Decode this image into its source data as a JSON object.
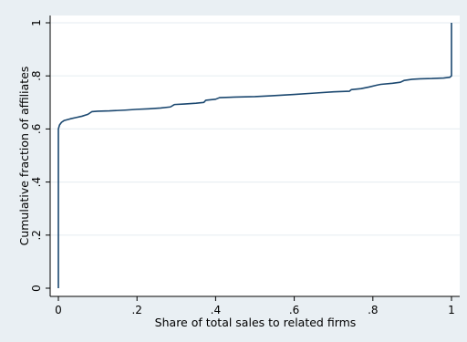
{
  "chart_data": {
    "type": "line",
    "title": "",
    "xlabel": "Share of total sales to related firms",
    "ylabel": "Cumulative fraction of affiliates",
    "xlim": [
      0,
      1
    ],
    "ylim": [
      0,
      1
    ],
    "xticks": [
      0,
      0.2,
      0.4,
      0.6,
      0.8,
      1
    ],
    "xtick_labels": [
      "0",
      ".2",
      ".4",
      ".6",
      ".8",
      "1"
    ],
    "yticks": [
      0,
      0.2,
      0.4,
      0.6,
      0.8,
      1
    ],
    "ytick_labels": [
      "0",
      ".2",
      ".4",
      ".6",
      ".8",
      "1"
    ],
    "grid": "horizontal",
    "colors": {
      "outer_background": "#e9eff3",
      "plot_background": "#ffffff",
      "gridline": "#e9eff3",
      "line": "#1a476f",
      "axis": "#000000"
    },
    "series": [
      {
        "points": [
          [
            0,
            0.0
          ],
          [
            0,
            0.6
          ],
          [
            0.003,
            0.615
          ],
          [
            0.008,
            0.625
          ],
          [
            0.015,
            0.632
          ],
          [
            0.03,
            0.638
          ],
          [
            0.045,
            0.643
          ],
          [
            0.06,
            0.648
          ],
          [
            0.075,
            0.655
          ],
          [
            0.085,
            0.665
          ],
          [
            0.1,
            0.667
          ],
          [
            0.13,
            0.668
          ],
          [
            0.17,
            0.671
          ],
          [
            0.2,
            0.674
          ],
          [
            0.23,
            0.676
          ],
          [
            0.26,
            0.679
          ],
          [
            0.285,
            0.683
          ],
          [
            0.295,
            0.692
          ],
          [
            0.32,
            0.694
          ],
          [
            0.35,
            0.697
          ],
          [
            0.37,
            0.7
          ],
          [
            0.375,
            0.708
          ],
          [
            0.4,
            0.712
          ],
          [
            0.41,
            0.718
          ],
          [
            0.45,
            0.72
          ],
          [
            0.5,
            0.722
          ],
          [
            0.54,
            0.725
          ],
          [
            0.6,
            0.73
          ],
          [
            0.65,
            0.735
          ],
          [
            0.7,
            0.74
          ],
          [
            0.74,
            0.742
          ],
          [
            0.745,
            0.748
          ],
          [
            0.77,
            0.752
          ],
          [
            0.79,
            0.758
          ],
          [
            0.81,
            0.765
          ],
          [
            0.82,
            0.768
          ],
          [
            0.85,
            0.772
          ],
          [
            0.87,
            0.776
          ],
          [
            0.88,
            0.783
          ],
          [
            0.9,
            0.787
          ],
          [
            0.92,
            0.789
          ],
          [
            0.95,
            0.79
          ],
          [
            0.98,
            0.792
          ],
          [
            0.996,
            0.795
          ],
          [
            1.0,
            0.8
          ],
          [
            1.0,
            1.0
          ]
        ]
      }
    ]
  }
}
